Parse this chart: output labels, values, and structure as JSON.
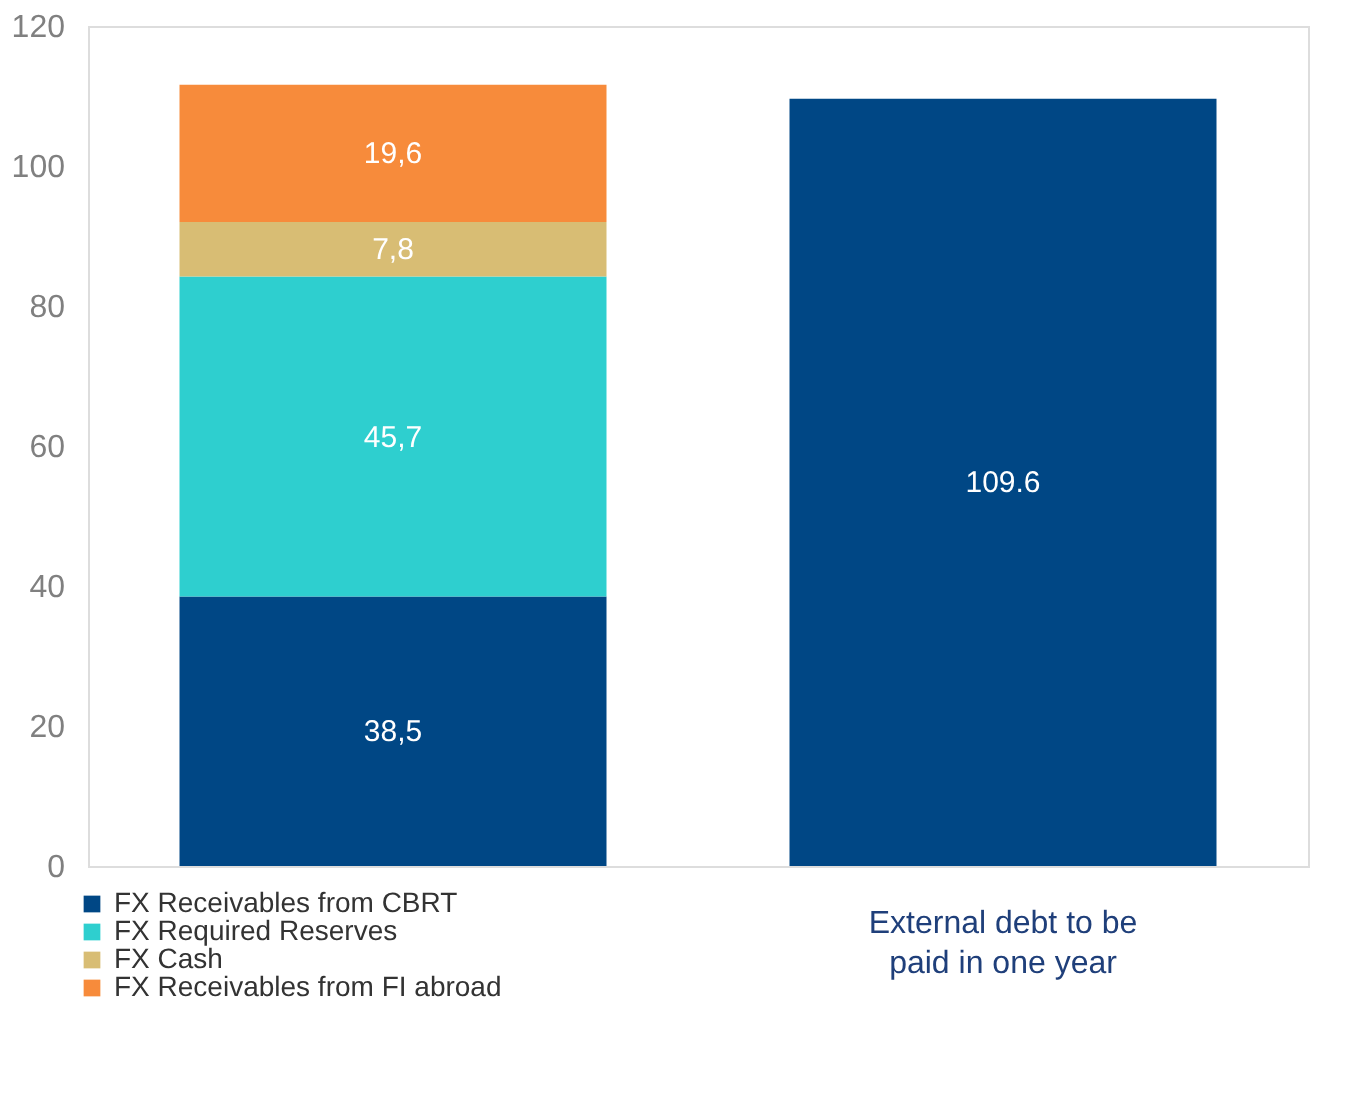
{
  "chart_data": {
    "type": "bar",
    "stacked": true,
    "categories": [
      null,
      "External debt to be paid in one year"
    ],
    "series": [
      {
        "name": "FX Receivables from CBRT",
        "color": "#004785",
        "values": [
          38.5,
          109.6
        ],
        "value_labels": [
          "38,5",
          "109.6"
        ]
      },
      {
        "name": "FX Required Reserves",
        "color": "#2ecfcf",
        "values": [
          45.7,
          null
        ],
        "value_labels": [
          "45,7",
          null
        ]
      },
      {
        "name": "FX Cash",
        "color": "#d8bd74",
        "values": [
          7.8,
          null
        ],
        "value_labels": [
          "7,8",
          null
        ]
      },
      {
        "name": "FX Receivables from FI abroad",
        "color": "#f78b3b",
        "values": [
          19.6,
          null
        ],
        "value_labels": [
          "19,6",
          null
        ]
      }
    ],
    "ylim": [
      0,
      120
    ],
    "yticks": [
      0,
      20,
      40,
      60,
      80,
      100,
      120
    ],
    "grid": false,
    "legend": "bottom left"
  }
}
